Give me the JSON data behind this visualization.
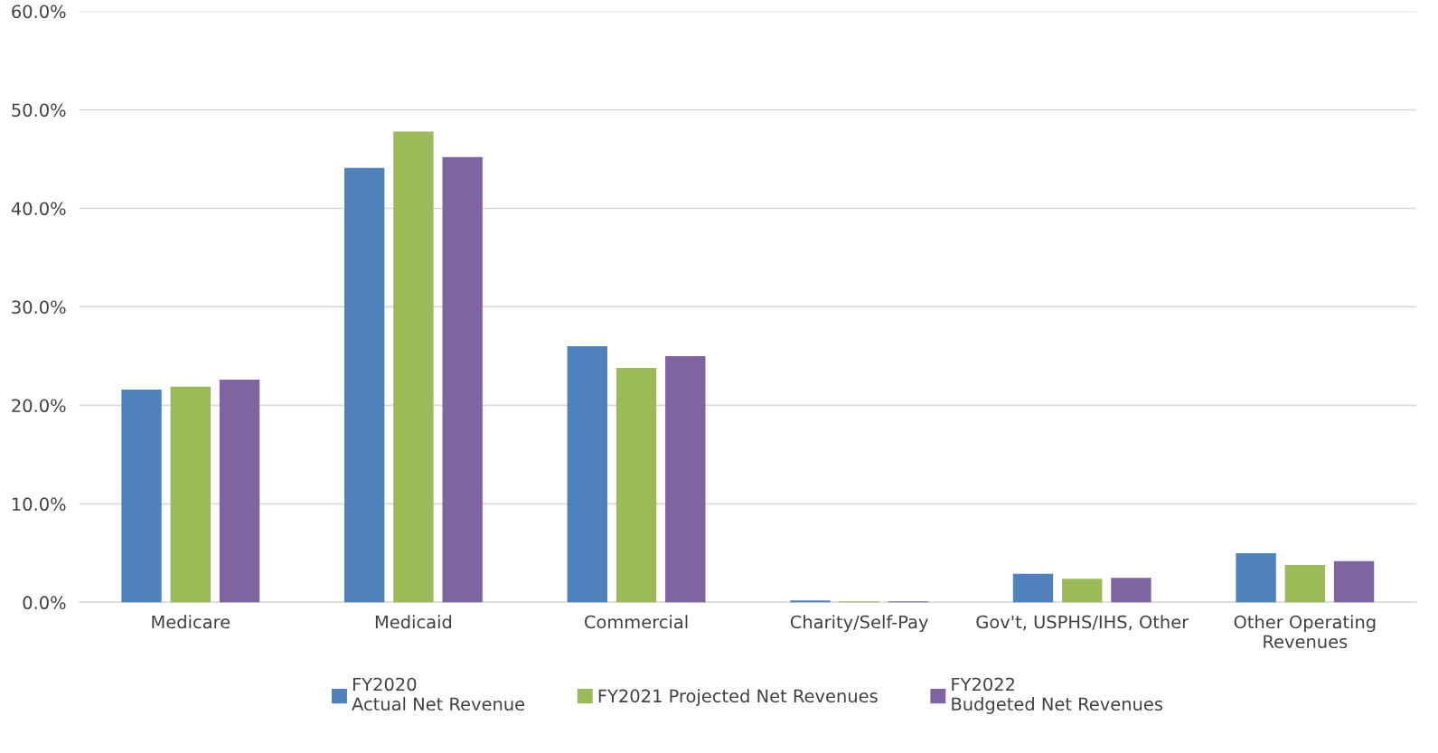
{
  "chart_data": {
    "type": "bar",
    "categories": [
      "Medicare",
      "Medicaid",
      "Commercial",
      "Charity/Self-Pay",
      "Gov't, USPHS/IHS, Other",
      "Other Operating\nRevenues"
    ],
    "series": [
      {
        "name": "FY2020\nActual Net Revenue",
        "color": "#4f81bd",
        "values": [
          21.6,
          44.1,
          26.0,
          0.2,
          2.9,
          5.0
        ]
      },
      {
        "name": "FY2021 Projected Net Revenues",
        "color": "#9bbb59",
        "values": [
          21.9,
          47.8,
          23.8,
          0.1,
          2.4,
          3.8
        ]
      },
      {
        "name": "FY2022\nBudgeted Net Revenues",
        "color": "#8064a2",
        "values": [
          22.6,
          45.2,
          25.0,
          0.1,
          2.5,
          4.2
        ]
      }
    ],
    "ylim": [
      0,
      60
    ],
    "yticks": [
      {
        "value": 0,
        "label": "0.0%"
      },
      {
        "value": 10,
        "label": "10.0%"
      },
      {
        "value": 20,
        "label": "20.0%"
      },
      {
        "value": 30,
        "label": "30.0%"
      },
      {
        "value": 40,
        "label": "40.0%"
      },
      {
        "value": 50,
        "label": "50.0%"
      },
      {
        "value": 60,
        "label": "60.0%"
      }
    ],
    "grid": "y",
    "legend": "bottom"
  }
}
